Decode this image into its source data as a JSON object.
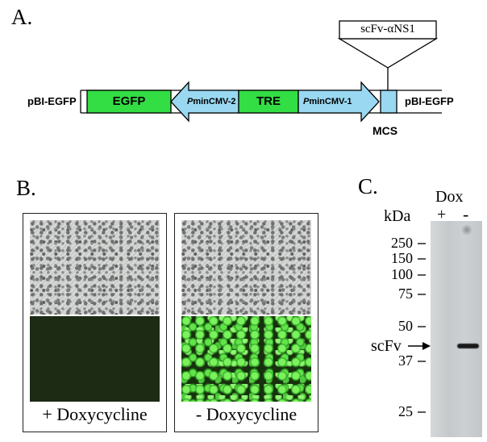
{
  "panel_a": {
    "label": "A.",
    "left_vector": "pBI-EGFP",
    "right_vector": "pBI-EGFP",
    "egfp": "EGFP",
    "promoter2": "PminCMV-2",
    "tre": "TRE",
    "promoter1": "PminCMV-1",
    "mcs": "MCS",
    "insert": "scFv-αNS1",
    "colors": {
      "green": "#33dd44",
      "blue": "#99d8f0"
    }
  },
  "panel_b": {
    "label": "B.",
    "left_caption": "+ Doxycycline",
    "right_caption": "- Doxycycline"
  },
  "panel_c": {
    "label": "C.",
    "dox_label": "Dox",
    "kda_label": "kDa",
    "lane_plus": "+",
    "lane_minus": "-",
    "markers": [
      "250",
      "150",
      "100",
      "75",
      "50",
      "37",
      "25"
    ],
    "band_label": "scFv"
  }
}
